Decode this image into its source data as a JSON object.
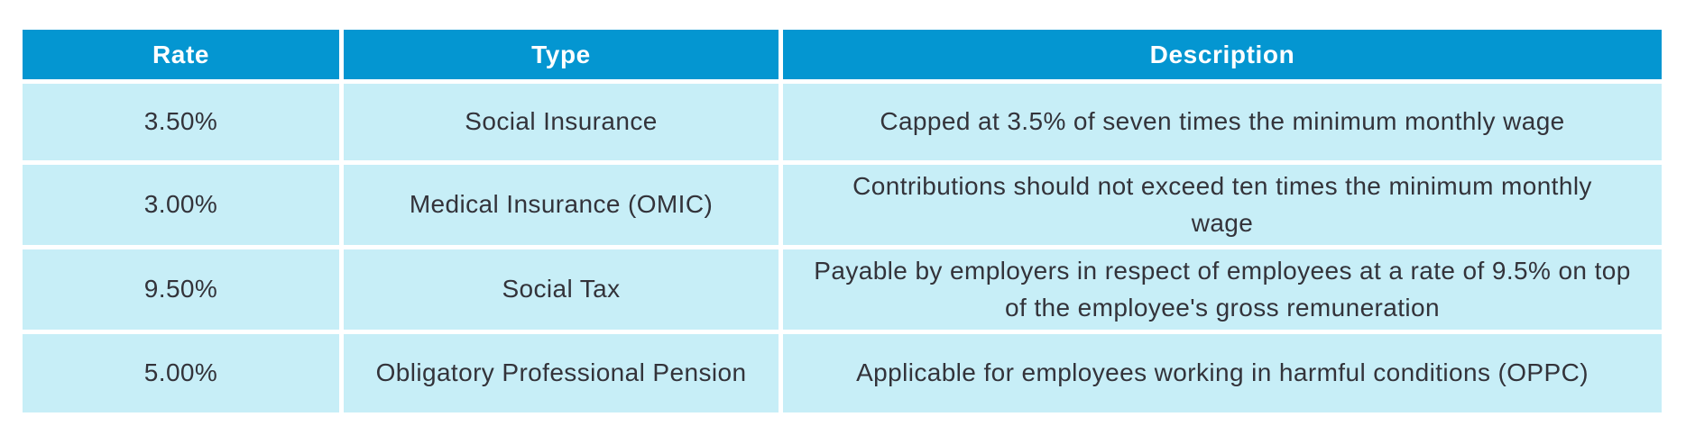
{
  "table": {
    "name": "social-contributions-rates-table",
    "colors": {
      "header_background": "#0496d1",
      "header_text": "#ffffff",
      "cell_background": "#c7eef7",
      "cell_text": "#33333a",
      "gutter": "#ffffff"
    },
    "columns": [
      {
        "label": "Rate"
      },
      {
        "label": "Type"
      },
      {
        "label": "Description"
      }
    ],
    "rows": [
      {
        "rate": "3.50%",
        "type": "Social Insurance",
        "description": "Capped at 3.5% of seven times the minimum monthly wage"
      },
      {
        "rate": "3.00%",
        "type": "Medical Insurance (OMIC)",
        "description": "Contributions should not exceed ten times the minimum monthly wage"
      },
      {
        "rate": "9.50%",
        "type": "Social Tax",
        "description": "Payable by employers in respect of employees at a rate of 9.5% on top of the employee's gross remuneration"
      },
      {
        "rate": "5.00%",
        "type": "Obligatory Professional Pension",
        "description": "Applicable for employees working in harmful conditions (OPPC)"
      }
    ]
  }
}
